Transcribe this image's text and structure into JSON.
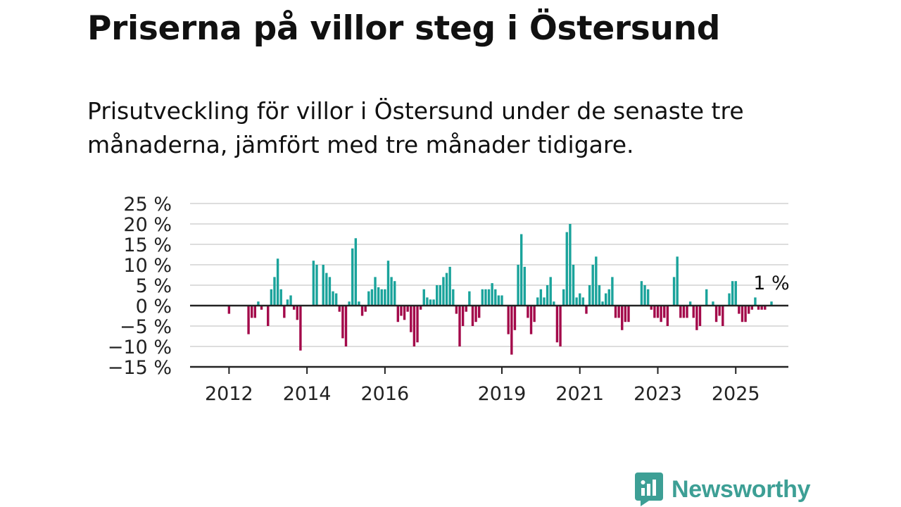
{
  "title": "Priserna på villor steg i Östersund",
  "subtitle": "Prisutveckling för villor i Östersund under de senaste tre månaderna, jämfört med tre månader tidigare.",
  "logo": {
    "text": "Newsworthy",
    "icon": "newsworthy-bar-chart-icon"
  },
  "colors": {
    "positive": "#1aa39b",
    "negative": "#a3094a",
    "grid": "#dddddd",
    "axis": "#222222"
  },
  "chart_data": {
    "type": "bar",
    "title": "Priserna på villor steg i Östersund",
    "subtitle": "Prisutveckling för villor i Östersund under de senaste tre månaderna, jämfört med tre månader tidigare.",
    "xlabel": "",
    "ylabel": "",
    "ylim": [
      -15,
      25
    ],
    "y_ticks": [
      25,
      20,
      15,
      10,
      5,
      0,
      -5,
      -10,
      -15
    ],
    "y_tick_labels": [
      "25 %",
      "20 %",
      "15 %",
      "10 %",
      "5 %",
      "0 %",
      "−5 %",
      "−10 %",
      "−15 %"
    ],
    "x_ticks": [
      2012,
      2014,
      2016,
      2019,
      2021,
      2023,
      2025
    ],
    "x_tick_labels": [
      "2012",
      "2014",
      "2016",
      "2019",
      "2021",
      "2023",
      "2025"
    ],
    "grid": true,
    "x_range": [
      2011.0,
      2026.35
    ],
    "start_year": 2012,
    "series": [
      {
        "values": [
          -2,
          0,
          0,
          0,
          0,
          0,
          -7,
          -3,
          -3,
          1,
          -1,
          0,
          -5,
          4,
          7,
          11.5,
          4,
          -3,
          1.5,
          2.5,
          -1,
          -3.5,
          -11,
          0,
          0,
          0,
          11,
          10,
          0,
          10,
          8,
          7,
          3.5,
          3,
          -1.5,
          -8,
          -10,
          1,
          14,
          16.5,
          1,
          -2.5,
          -1.5,
          3.5,
          4,
          7,
          4.5,
          4,
          4,
          11,
          7,
          6,
          -4,
          -2.5,
          -3.5,
          -1.5,
          -6.5,
          -10,
          -9,
          -1,
          4,
          2,
          1.5,
          1.5,
          5,
          5,
          7,
          8,
          9.5,
          4,
          -2,
          -10,
          -5,
          -1.5,
          3.5,
          -5,
          -4,
          -3,
          4,
          4,
          4,
          5.5,
          4,
          2.5,
          2.5,
          0,
          -7,
          -12,
          -6,
          10,
          17.5,
          9.5,
          -3,
          -7,
          -4,
          2,
          4,
          2,
          5,
          7,
          1,
          -9,
          -10,
          4,
          18,
          20,
          10,
          2,
          3,
          2,
          -2,
          5,
          10,
          12,
          5,
          1,
          3,
          4,
          7,
          -3,
          -3,
          -6,
          -4,
          -4,
          0,
          0,
          0,
          6,
          5,
          4,
          -1,
          -3,
          -3,
          -4,
          -3,
          -5,
          0,
          7,
          12,
          -3,
          -3,
          -3,
          1,
          -3,
          -6,
          -5,
          0,
          4,
          0,
          1,
          -4,
          -2.5,
          -5,
          0,
          3,
          6,
          6,
          -2,
          -4,
          -4,
          -2,
          -1,
          2,
          -1,
          -1,
          -1,
          0,
          1
        ],
        "last_label": "1 %"
      }
    ]
  }
}
